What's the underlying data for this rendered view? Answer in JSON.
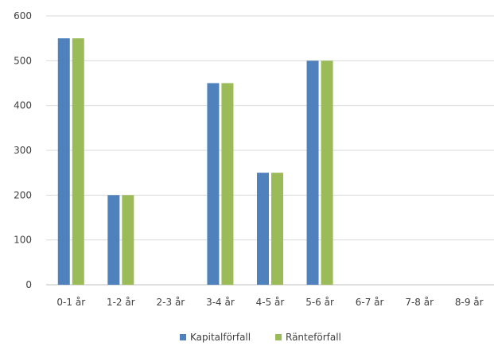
{
  "chart_data": {
    "type": "bar",
    "categories": [
      "0-1 år",
      "1-2 år",
      "2-3 år",
      "3-4 år",
      "4-5 år",
      "5-6 år",
      "6-7 år",
      "7-8 år",
      "8-9 år"
    ],
    "series": [
      {
        "name": "Kapitalförfall",
        "color": "#4F81BD",
        "values": [
          550,
          200,
          0,
          450,
          250,
          500,
          0,
          0,
          0
        ]
      },
      {
        "name": "Ränteförfall",
        "color": "#9BBB59",
        "values": [
          550,
          200,
          0,
          450,
          250,
          500,
          0,
          0,
          0
        ]
      }
    ],
    "title": "",
    "xlabel": "",
    "ylabel": "",
    "ylim": [
      0,
      600
    ],
    "yticks": [
      0,
      100,
      200,
      300,
      400,
      500,
      600
    ],
    "grid": true,
    "legend_position": "bottom"
  }
}
